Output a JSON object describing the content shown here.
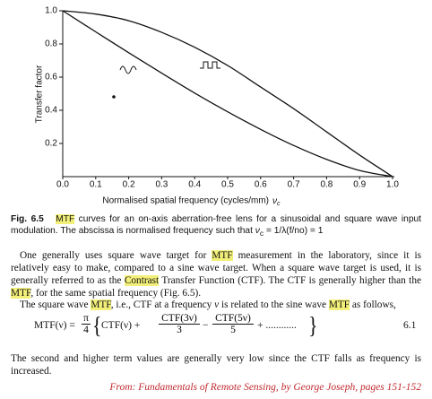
{
  "chart_data": {
    "type": "line",
    "ylabel": "Transfer factor",
    "xlabel": "Normalised spatial frequency (cycles/mm)",
    "xlabel_var": "ν",
    "xlabel_sub": "c",
    "x": [
      0,
      0.1,
      0.2,
      0.3,
      0.4,
      0.5,
      0.6,
      0.7,
      0.8,
      0.9,
      1
    ],
    "series": [
      {
        "color": "#111111",
        "values": [
          1,
          0.873,
          0.747,
          0.624,
          0.504,
          0.391,
          0.285,
          0.188,
          0.104,
          0.037,
          0
        ]
      },
      {
        "color": "#111111",
        "values": [
          1,
          0.98,
          0.94,
          0.87,
          0.78,
          0.67,
          0.54,
          0.41,
          0.27,
          0.13,
          0
        ]
      }
    ],
    "xlim": [
      0,
      1
    ],
    "ylim": [
      0,
      1
    ],
    "xticks": [
      {
        "value": 0,
        "label": "0.0"
      },
      0.1,
      0.2,
      0.3,
      0.4,
      0.5,
      0.6,
      0.7,
      0.8,
      0.9,
      {
        "value": 1,
        "label": "1.0"
      }
    ],
    "yticks": [
      0.2,
      0.4,
      0.6,
      0.8,
      {
        "value": 1,
        "label": "1.0"
      }
    ]
  },
  "caption": {
    "label": "Fig. 6.5",
    "text": [
      {
        "hl": "MTF"
      },
      " curves for an on-axis aberration-free lens for a sinusoidal and square wave input modulation. The abscissa is normalised frequency such that ",
      {
        "i": "ν"
      },
      {
        "sub": "c"
      },
      " = 1/λ(f/no) = 1"
    ]
  },
  "paragraphs": [
    [
      "One generally uses square wave target for ",
      {
        "hl": "MTF"
      },
      " measurement in the laboratory, since it is relatively easy to make, compared to a sine wave target. When a square wave target is used, it is generally referred to as the ",
      {
        "hl": "Contrast"
      },
      " Transfer Function (CTF). The CTF is generally higher than the ",
      {
        "hl": "MTF"
      },
      ", for the same spatial frequency (Fig. 6.5)."
    ],
    [
      "The square wave ",
      {
        "hl": "MTF"
      },
      ", i.e., CTF at a frequency ",
      {
        "i": "ν"
      },
      " is related to the sine wave ",
      {
        "hl": "MTF"
      },
      " as follows,"
    ]
  ],
  "equation": {
    "lhs": "MTF(ν) =",
    "num": "π",
    "den": "4",
    "t1": "CTF(ν) +",
    "t2": "CTF(3ν)",
    "d2": "3",
    "op": "−",
    "t3": "CTF(5ν)",
    "d3": "5",
    "tail": "+ ............",
    "number": "6.1"
  },
  "closing": [
    "The second and higher term values are generally very low since the CTF falls as frequency is increased."
  ],
  "source": "From: Fundamentals of Remote Sensing, by George Joseph, pages 151-152"
}
